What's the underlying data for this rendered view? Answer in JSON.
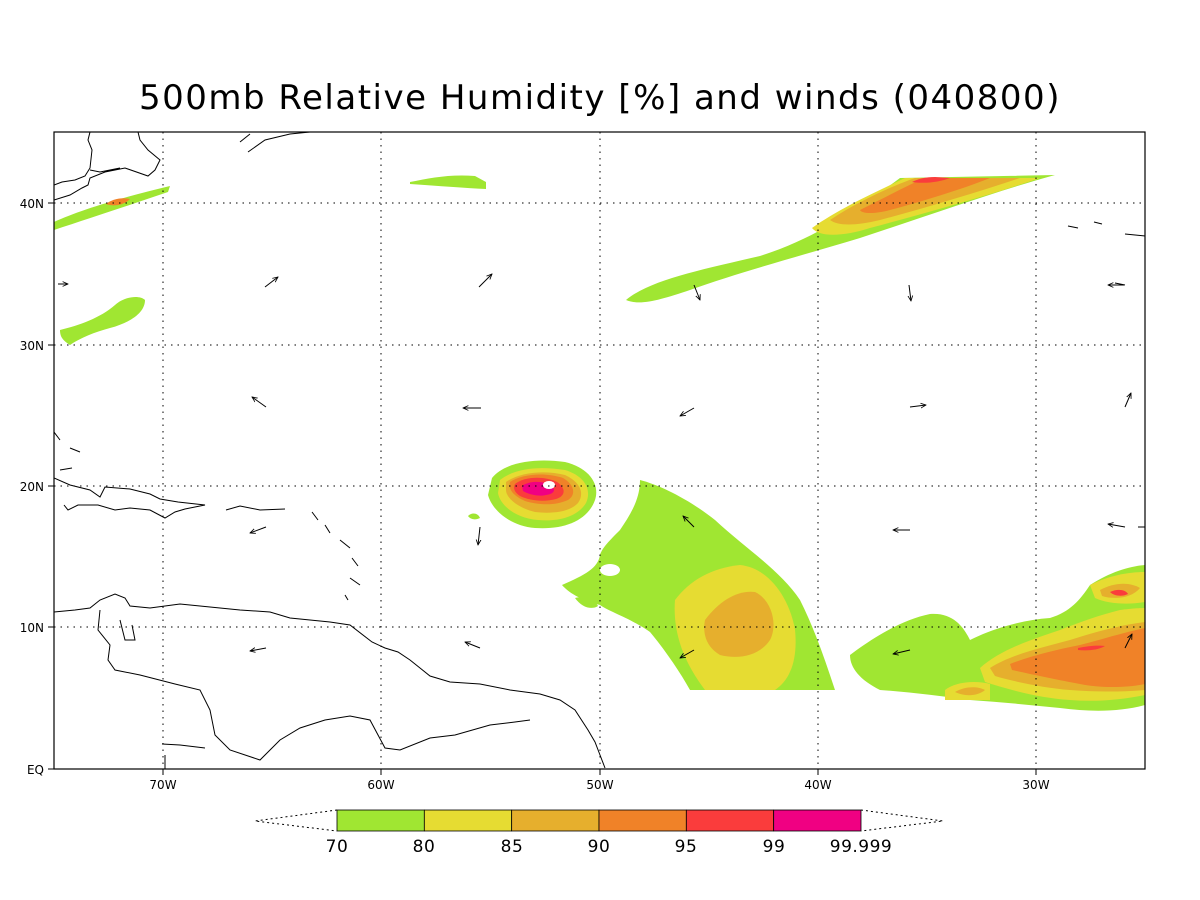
{
  "title": "500mb Relative Humidity [%] and winds (040800)",
  "map": {
    "lon_range": [
      -75,
      -25
    ],
    "lat_range": [
      0,
      45
    ],
    "grid": true,
    "lon_ticks": [
      {
        "value": -70,
        "label": "70W"
      },
      {
        "value": -60,
        "label": "60W"
      },
      {
        "value": -50,
        "label": "50W"
      },
      {
        "value": -40,
        "label": "40W"
      },
      {
        "value": -30,
        "label": "30W"
      }
    ],
    "lat_ticks": [
      {
        "value": 40,
        "label": "40N"
      },
      {
        "value": 30,
        "label": "30N"
      },
      {
        "value": 20,
        "label": "20N"
      },
      {
        "value": 10,
        "label": "10N"
      },
      {
        "value": 0,
        "label": "EQ"
      }
    ]
  },
  "legend": {
    "labels": [
      "70",
      "80",
      "85",
      "90",
      "95",
      "99",
      "99.999"
    ],
    "colors": [
      "#a0e632",
      "#e6dc32",
      "#e6af2d",
      "#f08228",
      "#fa3c3c",
      "#f00082"
    ]
  },
  "colors": {
    "rh_70": "#a0e632",
    "rh_80": "#e6dc32",
    "rh_85": "#e6af2d",
    "rh_90": "#f08228",
    "rh_95": "#fa3c3c",
    "rh_99": "#f00082"
  }
}
